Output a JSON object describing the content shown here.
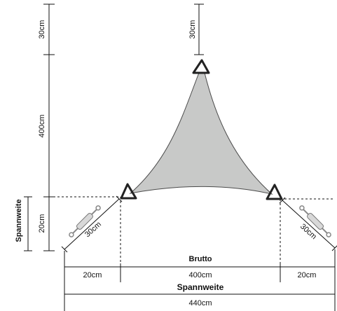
{
  "labels": {
    "left_top": "30cm",
    "top_center": "30cm",
    "left_height": "400cm",
    "left_lower": "20cm",
    "left_axis_title": "Spannweite",
    "corner_left": "30cm",
    "corner_right": "30cm",
    "brutto": "Brutto",
    "bottom_left": "20cm",
    "bottom_center": "400cm",
    "bottom_right": "20cm",
    "spannweite": "Spannweite",
    "total": "440cm"
  },
  "colors": {
    "sail_fill": "#c8c9c8",
    "sail_stroke": "#4a4a4a",
    "line": "#111111"
  },
  "icons": [
    "turnbuckle-icon",
    "triangle-ring-icon"
  ]
}
